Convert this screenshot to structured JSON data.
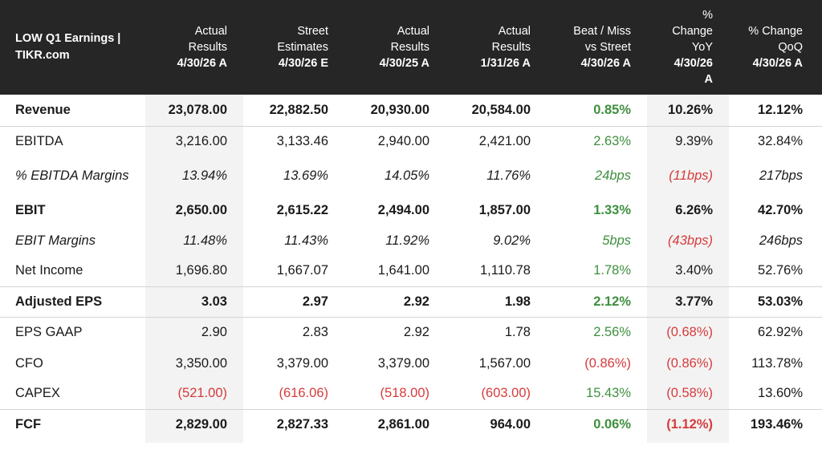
{
  "header": {
    "title_line1": "LOW Q1 Earnings |",
    "title_line2": "TIKR.com",
    "columns": [
      {
        "lines": [
          "Actual",
          "Results"
        ],
        "date": "4/30/26 A"
      },
      {
        "lines": [
          "Street",
          "Estimates"
        ],
        "date": "4/30/26 E"
      },
      {
        "lines": [
          "Actual",
          "Results"
        ],
        "date": "4/30/25 A"
      },
      {
        "lines": [
          "Actual",
          "Results"
        ],
        "date": "1/31/26 A"
      },
      {
        "lines": [
          "Beat / Miss",
          "vs Street"
        ],
        "date": "4/30/26 A"
      },
      {
        "lines": [
          "%",
          "Change",
          "YoY"
        ],
        "date": "4/30/26",
        "date2": "A"
      },
      {
        "lines": [
          "% Change",
          "QoQ"
        ],
        "date": "4/30/26 A"
      }
    ]
  },
  "rows": [
    {
      "name": "Revenue",
      "values": [
        "23,078.00",
        "22,882.50",
        "20,930.00",
        "20,584.00",
        "0.85%",
        "10.26%",
        "12.12%"
      ]
    },
    {
      "name": "EBITDA",
      "values": [
        "3,216.00",
        "3,133.46",
        "2,940.00",
        "2,421.00",
        "2.63%",
        "9.39%",
        "32.84%"
      ]
    },
    {
      "name": "% EBITDA Margins",
      "values": [
        "13.94%",
        "13.69%",
        "14.05%",
        "11.76%",
        "24bps",
        "(11bps)",
        "217bps"
      ]
    },
    {
      "name": "EBIT",
      "values": [
        "2,650.00",
        "2,615.22",
        "2,494.00",
        "1,857.00",
        "1.33%",
        "6.26%",
        "42.70%"
      ]
    },
    {
      "name": "EBIT Margins",
      "values": [
        "11.48%",
        "11.43%",
        "11.92%",
        "9.02%",
        "5bps",
        "(43bps)",
        "246bps"
      ]
    },
    {
      "name": "Net Income",
      "values": [
        "1,696.80",
        "1,667.07",
        "1,641.00",
        "1,110.78",
        "1.78%",
        "3.40%",
        "52.76%"
      ]
    },
    {
      "name": "Adjusted EPS",
      "values": [
        "3.03",
        "2.97",
        "2.92",
        "1.98",
        "2.12%",
        "3.77%",
        "53.03%"
      ]
    },
    {
      "name": "EPS GAAP",
      "values": [
        "2.90",
        "2.83",
        "2.92",
        "1.78",
        "2.56%",
        "(0.68%)",
        "62.92%"
      ]
    },
    {
      "name": "CFO",
      "values": [
        "3,350.00",
        "3,379.00",
        "3,379.00",
        "1,567.00",
        "(0.86%)",
        "(0.86%)",
        "113.78%"
      ]
    },
    {
      "name": "CAPEX",
      "values": [
        "(521.00)",
        "(616.06)",
        "(518.00)",
        "(603.00)",
        "15.43%",
        "(0.58%)",
        "13.60%"
      ]
    },
    {
      "name": "FCF",
      "values": [
        "2,829.00",
        "2,827.33",
        "2,861.00",
        "964.00",
        "0.06%",
        "(1.12%)",
        "193.46%"
      ]
    }
  ],
  "colors": {
    "header_bg": "#262626",
    "positive": "#3f8f3f",
    "negative": "#d63b3b",
    "shaded_col": "#f3f3f3"
  }
}
